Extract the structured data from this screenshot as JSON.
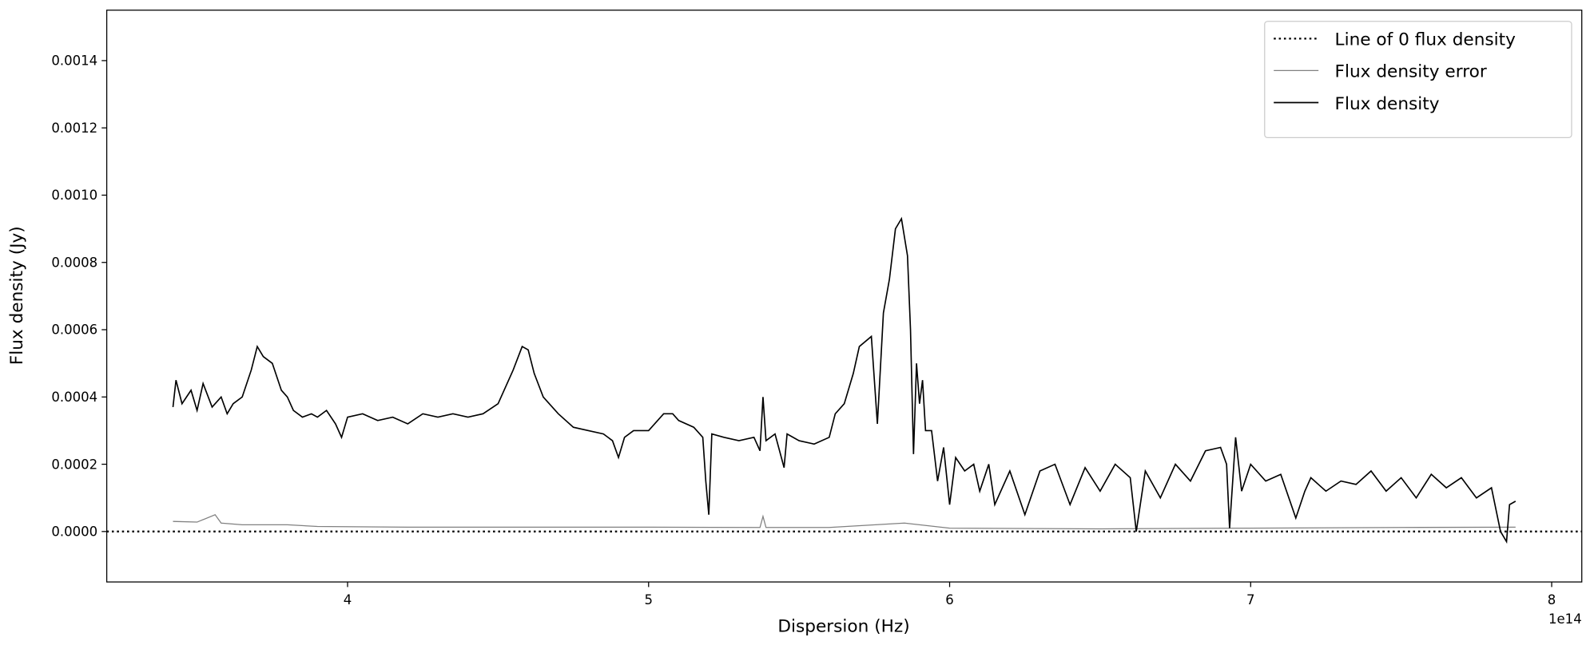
{
  "chart_data": {
    "type": "line",
    "xlabel": "Dispersion (Hz)",
    "ylabel": "Flux density (Jy)",
    "x_offset_label": "1e14",
    "xlim": [
      3.2,
      8.1
    ],
    "xticks": [
      4,
      5,
      6,
      7,
      8
    ],
    "ylim": [
      -0.00015,
      0.00155
    ],
    "yticks": [
      {
        "value": 0,
        "label": "0.0000"
      },
      {
        "value": 0.0002,
        "label": "0.0002"
      },
      {
        "value": 0.0004,
        "label": "0.0004"
      },
      {
        "value": 0.0006,
        "label": "0.0006"
      },
      {
        "value": 0.0008,
        "label": "0.0008"
      },
      {
        "value": 0.001,
        "label": "0.0010"
      },
      {
        "value": 0.0012,
        "label": "0.0012"
      },
      {
        "value": 0.0014,
        "label": "0.0014"
      }
    ],
    "legend": "upper right",
    "series": [
      {
        "name": "Line of 0 flux density",
        "color": "#000000",
        "linestyle": "dotted",
        "x": [
          3.2,
          8.1
        ],
        "values": [
          0,
          0
        ]
      },
      {
        "name": "Flux density error",
        "color": "#808080",
        "linestyle": "solid",
        "x": [
          3.42,
          3.5,
          3.56,
          3.58,
          3.65,
          3.8,
          3.9,
          4.2,
          4.5,
          5.0,
          5.37,
          5.38,
          5.39,
          5.6,
          5.85,
          6.0,
          6.5,
          7.0,
          7.5,
          7.88
        ],
        "values": [
          3e-05,
          2.8e-05,
          5e-05,
          2.5e-05,
          2e-05,
          2e-05,
          1.5e-05,
          1.3e-05,
          1.3e-05,
          1.3e-05,
          1.2e-05,
          4.5e-05,
          1.2e-05,
          1.2e-05,
          2.5e-05,
          1e-05,
          8e-06,
          1e-05,
          1.2e-05,
          1.3e-05
        ]
      },
      {
        "name": "Flux density",
        "color": "#000000",
        "linestyle": "solid",
        "x": [
          3.42,
          3.43,
          3.45,
          3.48,
          3.5,
          3.52,
          3.55,
          3.58,
          3.6,
          3.62,
          3.65,
          3.68,
          3.7,
          3.72,
          3.75,
          3.78,
          3.8,
          3.82,
          3.85,
          3.88,
          3.9,
          3.93,
          3.96,
          3.98,
          4.0,
          4.05,
          4.1,
          4.15,
          4.2,
          4.25,
          4.3,
          4.35,
          4.4,
          4.45,
          4.5,
          4.55,
          4.58,
          4.6,
          4.62,
          4.65,
          4.7,
          4.75,
          4.8,
          4.85,
          4.88,
          4.9,
          4.92,
          4.95,
          5.0,
          5.05,
          5.08,
          5.1,
          5.15,
          5.18,
          5.19,
          5.2,
          5.21,
          5.25,
          5.3,
          5.35,
          5.37,
          5.38,
          5.39,
          5.42,
          5.45,
          5.46,
          5.5,
          5.55,
          5.6,
          5.62,
          5.65,
          5.68,
          5.7,
          5.74,
          5.76,
          5.78,
          5.8,
          5.82,
          5.84,
          5.86,
          5.87,
          5.88,
          5.89,
          5.9,
          5.91,
          5.92,
          5.94,
          5.96,
          5.98,
          6.0,
          6.02,
          6.05,
          6.08,
          6.1,
          6.13,
          6.15,
          6.2,
          6.25,
          6.3,
          6.35,
          6.4,
          6.45,
          6.5,
          6.55,
          6.6,
          6.62,
          6.65,
          6.7,
          6.75,
          6.8,
          6.85,
          6.9,
          6.92,
          6.93,
          6.95,
          6.97,
          7.0,
          7.05,
          7.1,
          7.15,
          7.18,
          7.2,
          7.25,
          7.3,
          7.35,
          7.4,
          7.45,
          7.5,
          7.55,
          7.6,
          7.65,
          7.7,
          7.75,
          7.8,
          7.83,
          7.85,
          7.86,
          7.88
        ],
        "values": [
          0.00037,
          0.00045,
          0.00038,
          0.00042,
          0.00036,
          0.00044,
          0.00037,
          0.0004,
          0.00035,
          0.00038,
          0.0004,
          0.00048,
          0.00055,
          0.00052,
          0.0005,
          0.00042,
          0.0004,
          0.00036,
          0.00034,
          0.00035,
          0.00034,
          0.00036,
          0.00032,
          0.00028,
          0.00034,
          0.00035,
          0.00033,
          0.00034,
          0.00032,
          0.00035,
          0.00034,
          0.00035,
          0.00034,
          0.00035,
          0.00038,
          0.00048,
          0.00055,
          0.00054,
          0.00047,
          0.0004,
          0.00035,
          0.00031,
          0.0003,
          0.00029,
          0.00027,
          0.00022,
          0.00028,
          0.0003,
          0.0003,
          0.00035,
          0.00035,
          0.00033,
          0.00031,
          0.00028,
          0.00015,
          5e-05,
          0.00029,
          0.00028,
          0.00027,
          0.00028,
          0.00024,
          0.0004,
          0.00027,
          0.00029,
          0.00019,
          0.00029,
          0.00027,
          0.00026,
          0.00028,
          0.00035,
          0.00038,
          0.00047,
          0.00055,
          0.00058,
          0.00032,
          0.00065,
          0.00075,
          0.0009,
          0.00093,
          0.00082,
          0.0006,
          0.00023,
          0.0005,
          0.00038,
          0.00045,
          0.0003,
          0.0003,
          0.00015,
          0.00025,
          8e-05,
          0.00022,
          0.00018,
          0.0002,
          0.00012,
          0.0002,
          8e-05,
          0.00018,
          5e-05,
          0.00018,
          0.0002,
          8e-05,
          0.00019,
          0.00012,
          0.0002,
          0.00016,
          0,
          0.00018,
          0.0001,
          0.0002,
          0.00015,
          0.00024,
          0.00025,
          0.0002,
          1e-05,
          0.00028,
          0.00012,
          0.0002,
          0.00015,
          0.00017,
          4e-05,
          0.00012,
          0.00016,
          0.00012,
          0.00015,
          0.00014,
          0.00018,
          0.00012,
          0.00016,
          0.0001,
          0.00017,
          0.00013,
          0.00016,
          0.0001,
          0.00013,
          0,
          -3e-05,
          8e-05,
          9e-05
        ]
      }
    ]
  }
}
